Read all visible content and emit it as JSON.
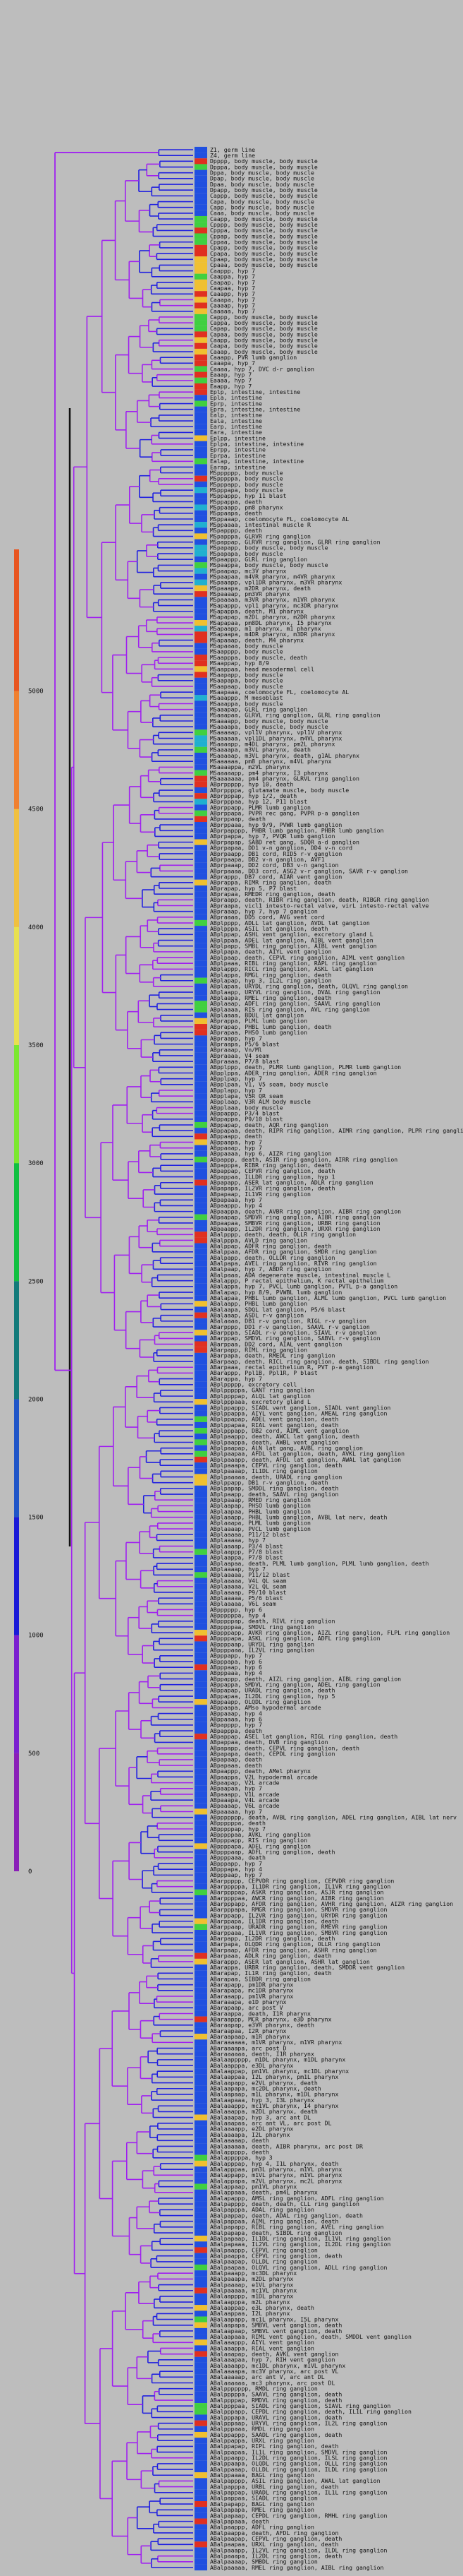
{
  "colorbar": {
    "ticks": [
      "0",
      "500",
      "1000",
      "1500",
      "2000",
      "2500",
      "3000",
      "3500",
      "4000",
      "4500",
      "5000"
    ],
    "max": 5600,
    "stops": [
      {
        "value": 0,
        "color": "#8a1fb8"
      },
      {
        "value": 500,
        "color": "#7b1fd0"
      },
      {
        "value": 1000,
        "color": "#1a1ad8"
      },
      {
        "value": 1500,
        "color": "#1f55c8"
      },
      {
        "value": 2000,
        "color": "#127a7a"
      },
      {
        "value": 2500,
        "color": "#10c040"
      },
      {
        "value": 3000,
        "color": "#7be830"
      },
      {
        "value": 3500,
        "color": "#e8e050"
      },
      {
        "value": 4000,
        "color": "#f0c040"
      },
      {
        "value": 4500,
        "color": "#f08030"
      },
      {
        "value": 5000,
        "color": "#e85520"
      }
    ]
  },
  "colors": {
    "branch_primary": "#a020f0",
    "branch_secondary": "#2020e0",
    "scale_bar": "#111111",
    "heat": [
      "#e03020",
      "#f0c030",
      "#40d040",
      "#20b0d0",
      "#2050e0"
    ]
  },
  "leaves": [
    "Z1, germ line",
    "Z4, germ line",
    "Dpppp, body muscle, body muscle",
    "Dpppa, body muscle, body muscle",
    "Dppa, body muscle, body muscle",
    "Dpap, body muscle, body muscle",
    "Dpaa, body muscle, body muscle",
    "Dpapp, body muscle, body muscle",
    "Cappp, body muscle, body muscle",
    "Capa, body muscle, body muscle",
    "Capp, body muscle, body muscle",
    "Caaa, body muscle, body muscle",
    "Caapp, body muscle, body muscle",
    "Cpppp, body muscle, body muscle",
    "Cpppa, body muscle, body muscle",
    "Cppap, body muscle, body muscle",
    "Cppaa, body muscle, body muscle",
    "Cpapp, body muscle, body muscle",
    "Cpapa, body muscle, body muscle",
    "Cpaap, body muscle, body muscle",
    "Cpaaa, body muscle, body muscle",
    "Caappp, hyp 7",
    "Caappa, hyp 7",
    "Caapap, hyp 7",
    "Caapaa, hyp 7",
    "Caaapp, hyp 7",
    "Caaapa, hyp 7",
    "Caaaap, hyp 7",
    "Caaaaa, hyp 7",
    "Cappp, body muscle, body muscle",
    "Cappa, body muscle, body muscle",
    "Capap, body muscle, body muscle",
    "Capaa, body muscle, body muscle",
    "Caapp, body muscle, body muscle",
    "Caapa, body muscle, body muscle",
    "Caaap, body muscle, body muscle",
    "Caaapp, PVR lumb ganglion",
    "Caaapa, hyp 7",
    "Caaaa, hyp 7, DVC d-r ganglion",
    "Eaaap, hyp 7",
    "Eaaaa, hyp 7",
    "Eaapp, hyp 7",
    "Eplp, intestine, intestine",
    "Epla, intestine",
    "Eprp, intestine",
    "Epra, intestine, intestine",
    "Ealp, intestine",
    "Eala, intestine",
    "Earp, intestine",
    "Eara, intestine",
    "Eplpp, intestine",
    "Eplpa, intestine, intestine",
    "Eprpp, intestine",
    "Eprpa, intestine",
    "Ealap, intestine, intestine",
    "Earap, intestine",
    "MSpppppp, body muscle",
    "MSpppppa, body muscle",
    "MSpppapp, body muscle",
    "MSpppapa, body muscle",
    "MSppappp, hyp 11 blast",
    "MSppappa, death",
    "MSppaapp, pm8 pharynx",
    "MSppaapa, death",
    "MSppaaap, coelomocyte FL, coelomocyte AL",
    "MSppaaaa, intestinal muscle R",
    "MSpapppp, death",
    "MSpapppa, GLRVR ring ganglion",
    "MSpappap, GLRVR ring ganglion, GLRR ring ganglion",
    "MSpapapp, body muscle, body muscle",
    "MSpapapa, body muscle",
    "MSpaappp, GLRL ring ganglion",
    "MSpaappa, body muscle, body muscle",
    "MSpaapap, mc3V pharynx",
    "MSpaapaa, m4VR pharynx, m4VR pharynx",
    "MSpaaapp, vpl1DR pharynx, m3VR pharynx",
    "MSpaaapa, m2DR pharynx, death",
    "MSpaaaap, pm3VR pharynx",
    "MSpaaaaa, m3VR pharynx, m1VR pharynx",
    "MSapappp, vpl1 pharynx, mc3DR pharynx",
    "MSapappa, death, M1 pharynx",
    "MSapapap, m2DL pharynx, m2DR pharynx",
    "MSapapaa, pm8DL pharynx, I5 pharynx",
    "MSapaapp, m1 pharynx, m1 pharynx",
    "MSapaapa, m4DR pharynx, m3DR pharynx",
    "MSapaaap, death, M4 pharynx",
    "MSapaaaa, body muscle",
    "MSaapppp, body muscle",
    "MSaapppa, body muscle, death",
    "MSaappap, hyp 8/9",
    "MSaappaa, head mesodermal cell",
    "MSaapapp, body muscle",
    "MSaapapa, body muscle",
    "MSaapaap, body muscle",
    "MSaapaaa, coelomocyte FL, coelomocyte AL",
    "MSaaappp, M mesoblast",
    "MSaaappa, body muscle",
    "MSaaapap, GLRL ring ganglion",
    "MSaaapaa, GLRVL ring ganglion, GLRL ring ganglion",
    "MSaaaapp, body muscle, body muscle",
    "MSaaaapa, body muscle, body muscle",
    "MSaaaaap, vpl1V pharynx, vpl1V pharynx",
    "MSaaaaaa, vpl1DL pharynx, m4VL pharynx",
    "MSaaaapp, m4DL pharynx, pm2L pharynx",
    "MSaaaapa, m3VL pharynx, death",
    "MSaaaaap, m3VL pharynx, death, g1AL pharynx",
    "MSaaaaaa, pm8 pharynx, m4VL pharynx",
    "MSaaaappa, m2VL pharynx",
    "MSaaaaapp, pm4 pharynx, I3 pharynx",
    "MSaaaaaaa, pm4 pharynx, GLRVL ring ganglion",
    "ABprppppp, hyp 10, death",
    "ABprppppa, glutamate muscle, body muscle",
    "ABprpppap, hyp 1/2, death",
    "ABprpppaa, hyp 12, P11 blast",
    "ABprppapp, PLMR lumb ganglion",
    "ABprppapa, PVPR rec gang, PVPR p-a ganglion",
    "ABprppaap, death",
    "ABprppaaa, hyp 9/9, PVWR lumb ganglion",
    "ABprpapppp, PHBR lumb ganglion, PHBR lumb ganglion",
    "ABprpappa, hyp 7, PVQR lumb ganglion",
    "ABprpapap, SABD ret gang, SDQR a-d ganglion",
    "ABprpapaa, DD1 v-n ganglion, DD4 v-n cord",
    "ABprpaapp, DB1 cord, RID5 r-v ganglion",
    "ABprpaapa, DB2 v-n ganglion, AVF1",
    "ABprpaaap, DD2 cord, DB3 v-n ganglion",
    "ABprpaaaa, DD3 cord, ASG2 v-r ganglion, SAVR r-v ganglion",
    "ABprappp, DB7 cord, AIAR vent ganglion",
    "ABprappa, RIMR ring ganglion, death",
    "ABprapap, hyp 5, P7 blast",
    "ABprapaa, RMEDR ring ganglion, death",
    "ABpraapp, death, RIBR ring ganglion, death, RIBGR ring ganglion",
    "ABpraapa, vicl1 intesto-rectal valve, virL intesto-rectal valve",
    "ABpraaap, hyp 7, hyp 7 ganglion",
    "ABpraaaa, DD5 cord, AVG vent cord",
    "ABplpppp, ADLL lat ganglion, AVDL lat ganglion",
    "ABplpppa, ASIL lat ganglion, death",
    "ABplppap, ASHL vent ganglion, excretory gland L",
    "ABplppaa, ADEL lat ganglion, AIBL vent ganglion",
    "ABplpapp, SMBL ring ganglion, AIBL vent ganglion",
    "ABplpapa, death, AIYL vent ganglion",
    "ABplpaap, death, CEPVL ring ganglion, AIML vent ganglion",
    "ABplpaaa, RIBL ring ganglion, RAPL ring ganglion",
    "ABplappp, RICL ring ganglion, ASKL lat ganglion",
    "ABplappa, RMGL ring ganglion, death",
    "ABplapap, hyp 3, IL2L ring ganglion",
    "ABplapaa, URYDL ring ganglion, death, OLQVL ring ganglion",
    "ABplaapp, URYVL ring ganglion, DVAL ring ganglion",
    "ABplaapa, RMEL ring ganglion, death",
    "ABplaaap, ADFL ring ganglion, SAAVL ring ganglion",
    "ABplaaaa, RIS ring ganglion, AVL ring ganglion",
    "ABplaaaa, BDUL lat ganglion",
    "ABprappa, PLML lumb ganglion",
    "ABprapap, PHBL lumb ganglion, death",
    "ABprapaa, PHSO lumb ganglion",
    "ABpraapp, hyp 7",
    "ABpraapa, P5/6 blast",
    "ABpraaap, Vn/Ml",
    "ABpraaaa, V4 seam",
    "ABpraaaa, P7/8 blast",
    "ABpplppp, death, PLMR lumb ganglion, PLMR lumb ganglion",
    "ABpplppa, ADER ring ganglion, ADER ring ganglion",
    "ABpplpap, hyp 7",
    "ABpplpaa, V1, V5 seam, body muscle",
    "ABpplapp, hyp 7",
    "ABpplapa, V5R QR seam",
    "ABpplaap, V3R ALM body muscle",
    "ABpplaaa, body muscle",
    "ABppappp, P3/4 blast",
    "ABppappa, P9/10 blast",
    "ABppapap, death, AQR ring ganglion",
    "ABppapaa, death, RIPR ring ganglion, AIMR ring ganglion, PLPR ring ganglion",
    "ABppaapp, death",
    "ABppaapa, hyp 7",
    "ABppaaap, hyp 7",
    "ABppaaaa, hyp 6, AIZR ring ganglion",
    "ABpappp, death, ASIR ring ganglion, AIRR ring ganglion",
    "ABpapppa, RIBR ring ganglion, death",
    "ABpappap, CEPVR ring ganglion, death",
    "ABpappaa, ILLDR ring ganglion, hyp 1",
    "ABpapapp, ASER lat ganglion, ADLR ring ganglion",
    "ABpapapa, IL2VR ring ganglion, death",
    "ABpapaap, IL1VR ring ganglion",
    "ABpapaaa, hyp 7",
    "ABpaappp, hyp 4",
    "ABpaappa, death, AVBR ring ganglion, AIBR ring ganglion",
    "ABpaapap, SMDVR ring ganglion, AIBR ring ganglion",
    "ABpaapaa, SMBVR ring ganglion, URBR ring ganglion",
    "ABpaaapp, IL2DR ring ganglion, URXR ring ganglion",
    "ABalpppp, death, death, OLLR ring ganglion",
    "ABalpppa, AVLD ring ganglion",
    "ABalppap, ADFR ring ganglion, death",
    "ABalppaa, AFDR ring ganglion, SMDR ring ganglion",
    "ABalpapp, death, OLLDR ring ganglion",
    "ABalpapa, AVEL ring ganglion, RIVR ring ganglion",
    "ABalpaap, hyp 7, ABDR ring ganglion",
    "ABalpaaa, ADA degenerate muscle, intestinal muscle L",
    "ABalappp, P rectal epithelium, K rectal epithelium",
    "ABalappa, hyp 7, PVCL lumb ganglion, PVTL p-a ganglion",
    "ABalapap, hyp 8/9, PVWBL lumb ganglion",
    "ABalapaa, PHBL lumb ganglion, ALML lumb ganglion, PVCL lumb ganglion",
    "ABalaapp, PHBL lumb ganglion",
    "ABalaapa, SDQL lat ganglion, P5/6 blast",
    "ABalaaap, ASDL r-v ganglion",
    "ABalaaaa, DB1 r-v ganglion, RIGL r-v ganglion",
    "ABarpppp, DD1 r-v ganglion, SAAVL r-v ganglion",
    "ABarpppa, SIADL r-v ganglion, SIAVL r-v ganglion",
    "ABarppap, SMDVL ring ganglion, SABVL r-v ganglion",
    "ABarppaa, DD2 cord, AIAL vent ganglion",
    "ABarpapp, RIML ring ganglion",
    "ABarpapa, death, RMEDL ring ganglion",
    "ABarpaap, death, RICL ring ganglion, death, SIBDL ring ganglion",
    "ABarpaaa, rectal epithelium R, PVT p-a ganglion",
    "ABarappp, Ppl1B, Ppl1R, P blast",
    "ABarappa, hyp 7",
    "ABplppppp, excretory cell",
    "ABplpppppa, GANT ring ganglion",
    "ABplppppap, ALQL lat ganglion",
    "ABplpppaaa, excretory gland L",
    "ABplppappp, SIADL vent ganglion, SIADL vent ganglion",
    "ABplppappa, AIYL vent ganglion, AMEAL ring ganglion",
    "ABplppapap, ADEL vent ganglion, death",
    "ABplppapaa, RIAL vent ganglion, death",
    "ABplpppapp, DB2 cord, AIML vent ganglion",
    "ABplpaappp, death, AWCL lat ganglion, death",
    "ABplpaappa, death, AWBL vent ganglion",
    "ABplpaapap, ALN lat gang, AVBL ring ganglion",
    "ABplpaapaa, AFDL lat ganglion, death, AVKL ring ganglion",
    "ABplpaaapp, death, AFDL lat ganglion, AWAL lat ganglion",
    "ABplpaaapa, CEPVL ring ganglion, death",
    "ABplpaaaap, IL1DL ring ganglion",
    "ABplpaaaaa, death, URADL ring ganglion",
    "ABplppapp, DB1 r-v ganglion, death",
    "ABplpapap, SMDDL ring ganglion, death",
    "ABplpaapp, death, SAAVL ring ganglion",
    "ABplpaaap, RMED ring ganglion",
    "ABplaapap, PHSO lumb ganglion",
    "ABplaapaa, PHBL lumb ganglion",
    "ABplaaapp, PHBL lumb ganglion, AVBL lat nerv, death",
    "ABplaaapa, PLML lumb ganglion",
    "ABplaaaap, PVCL lumb ganglion",
    "ABplaaaaa, P11/12 blast",
    "ABplaaaaa, hyp 7",
    "ABplaaaap, P3/4 blast",
    "ABplaappp, P7/8 blast",
    "ABplaappa, P7/8 blast",
    "ABplaapaa, death, PLML lumb ganglion, PLML lumb ganglion, death",
    "ABplaaaap, hyp 7",
    "ABplaaaaa, P11/12 blast",
    "ABplaaaaa, V4L QL seam",
    "ABplaaaaa, V2L QL seam",
    "ABplaaaap, P9/10 blast",
    "ABplaaaaa, P5/6 blast",
    "ABplaaaaa, V6L seam",
    "ABpppppp, hyp 6",
    "ABppppppa, hyp 4",
    "ABpppppap, death, RIVL ring ganglion",
    "ABpppppaa, SMDVL ring ganglion",
    "ABppppapp, AVKR ring ganglion, AIZL ring ganglion, FLPL ring ganglion",
    "ABppppapa, ASKL ring ganglion, ADFL ring ganglion",
    "ABppppaap, URYDL ring ganglion",
    "ABppppaaa, IL2VL ring ganglion",
    "ABpppapp, hyp 7",
    "ABpppapa, hyp 6",
    "ABpppaap, hyp 6",
    "ABpppaaa, hyp 4",
    "ABppappp, death, AIZL ring ganglion, AIBL ring ganglion",
    "ABppappa, SMDVL ring ganglion, ADEL ring ganglion",
    "ABppapap, URADL ring ganglion, death",
    "ABppapaa, IL2DL ring ganglion, hyp 5",
    "ABppaapp, OLQDL ring ganglion",
    "ABppaapa, AMso hypodermal arcade",
    "ABppaaap, hyp 4",
    "ABppaaaa, hyp 6",
    "ABpapppp, hyp 7",
    "ABpapppa, death",
    "ABpappap, ASEL lat ganglion, RIGL ring ganglion, death",
    "ABpappaa, death, DVB ring ganglion",
    "ABpapapp, death, CEPVL ring ganglion, death",
    "ABpapapa, death, CEPDL ring ganglion",
    "ABpapaap, death",
    "ABpapaaa, death",
    "ABpaappp, death, AMel pharynx",
    "ABpaappa, V2L hypodermal arcade",
    "ABpaapap, V2L arcade",
    "ABpaapaa, hyp 7",
    "ABpaaapp, V1L arcade",
    "ABpaaapa, V4L arcade",
    "ABpaaaap, V6L arcade",
    "ABpaaaaa, hyp 7",
    "ABppppppp, death, AVBL ring ganglion, ADEL ring ganglion, AIBL lat nerv",
    "ABppppppa, death",
    "ABpppppap, hyp 7",
    "ABpppppaa, AVKL ring ganglion",
    "ABppppapp, RIS ring ganglion",
    "ABppppapa, ADEL ring ganglion",
    "ABppppaap, ADFL ring ganglion, death",
    "ABppppaaa, death",
    "ABpppapp, hyp 7",
    "ABpppapa, hyp 4",
    "ABpppaap, hyp 7",
    "ABarppppp, CEPVDR ring ganglion, CEPVDR ring ganglion",
    "ABarpppppa, IL1DR ring ganglion, IL1VR ring ganglion",
    "ABarppppap, ASKR ring ganglion, ASJR ring ganglion",
    "ABarppppaa, AWCR ring ganglion, AIBR ring ganglion",
    "ABarpppapp, AFDR ring ganglion, AVHR ring ganglion, AIZR ring ganglion",
    "ABarpppapa, RMGR ring ganglion, SMDVR ring ganglion",
    "ABarppapp, IL2VR ring ganglion, URYDR ring ganglion",
    "ABarppapa, IL1DR ring ganglion, death",
    "ABarppaap, URADR ring ganglion, RMEVR ring ganglion",
    "ABarppaaa, IL1VR ring ganglion, SMBVR ring ganglion",
    "ABarpapp, IL2DR ring ganglion, death",
    "ABarpapa, OLQDR ring ganglion, OLLR ring ganglion",
    "ABarpaap, AFDR ring ganglion, ASHR ring ganglion",
    "ABarpaaa, ADLR ring ganglion, death",
    "ABarappp, ASER lat ganglion, ASHR lat ganglion",
    "ABarappa, URBR ring ganglion, death, SMDDR vent ganglion",
    "ABarapap, IL1R ring ganglion, death",
    "ABarapaa, SIBDR ring ganglion",
    "ABarapapp, pm1DR pharynx",
    "ABarapapa, mc1DR pharynx",
    "ABaraaapp, pm1VR pharynx",
    "ABaraaapa, e1D pharynx",
    "ABarapaap, arc post V",
    "ABaraappa, death, I1R pharynx",
    "ABaraappp, MCR pharynx, e3D pharynx",
    "ABaraapap, e3VR pharynx, death",
    "ABaraapaa, I2R pharynx",
    "ABaraapaap, m1R pharynx",
    "ABaraaaaaa, m1VR pharynx, m1VR pharynx",
    "ABaraaaapa, arc post D",
    "ABaraaaaaa, death, I1R pharynx",
    "ABalaappppp, m1DL pharynx, m1DL pharynx",
    "ABalaapppa, e3DL pharynx",
    "ABalaappap, pm1VL pharynx, mc1DL pharynx",
    "ABalaappaa, I2L pharynx, pm1L pharynx",
    "ABalaapapp, e2VL pharynx, death",
    "ABalaapapa, mc2DL pharynx, death",
    "ABalaapaap, m1L pharynx, m1DL pharynx",
    "ABalaapaaa, hyp 3, I3L pharynx",
    "ABalaaappp, mc1VL pharynx, I4 pharynx",
    "ABalaaappa, m2DL pharynx, death",
    "ABalaaapap, hyp 3, arc ant DL",
    "ABalaaapaa, arc ant VL, arc post DL",
    "ABalaaaapp, e2DL pharynx",
    "ABalaaaapa, I2L pharynx",
    "ABalaaaaap, death",
    "ABalaaaaaa, death, AIBR pharynx, arc post DR",
    "ABalappppp, death",
    "ABalapppppa, hyp 3",
    "ABalapppap, hyp 4, I1L pharynx, death",
    "ABalapppaa, pm3L pharynx, m1VL pharynx",
    "ABalappapp, m1VL pharynx, m1VL pharynx",
    "ABalappapa, m2VL pharynx, mc2L pharynx",
    "ABalappaap, pm1VL pharynx",
    "ABalappaaa, death, pm4L pharynx",
    "ABalapappp, AMSL ring ganglion, ADFL ring ganglion",
    "ABalpapppp, death, death, CLL ring ganglion",
    "ABalpapppa, ADAL ring ganglion",
    "ABalpappap, death, ADAL ring ganglion, death",
    "ABalpappaa, AIML ring ganglion, death",
    "ABalpapapp, RIBL ring ganglion, AVEL ring ganglion",
    "ABalpapapa, death, SIBDL ring ganglion",
    "ABalpapaap, IL1DL ring ganglion, IL1VL ring ganglion",
    "ABalpapaaa, IL2VL ring ganglion, IL2DL ring ganglion",
    "ABalpaappp, CEPVL ring ganglion",
    "ABalpaappa, CEPVL ring ganglion, death",
    "ABalpaapap, OLLDL ring ganglion",
    "ABalpaapaa, OLQVL ring ganglion, ADLL ring ganglion",
    "ABalpaaapp, mc3DL pharynx",
    "ABalpaaapa, m2DL pharynx",
    "ABalpaaaap, e1VL pharynx",
    "ABalpaaaaa, mc1VL pharynx",
    "ABalaapppp, m1DL pharynx",
    "ABalaapppa, m2L pharynx",
    "ABalaappap, e3L pharynx, death",
    "ABalaappaa, I2L pharynx",
    "ABalaapapp, mc1L pharynx, I5L pharynx",
    "ABalaapapa, SMBVL vent ganglion, death",
    "ABalaapaap, SMBVL vent ganglion, death",
    "ABalaapaaa, RIML vent ganglion, death, SMDDL vent ganglion",
    "ABalaaappp, AIYL vent ganglion",
    "ABalaaappa, RIAL vent ganglion",
    "ABalaaapap, death, AVKL vent ganglion",
    "ABalaaapaa, hyp 7, RIH vent ganglion",
    "ABalaaaapp, mc1DL pharynx, m1VL pharynx",
    "ABalaaaapa, mc3V pharynx, arc post VL",
    "ABalaaaaap, arc ant V, arc ant DL",
    "ABalaaaaaa, mc3 pharynx, arc post DL",
    "ABalppppppp, RMDL ring ganglion",
    "ABalpppppa, SAAVL ring ganglion, death",
    "ABalppppap, RMDVL ring ganglion, death",
    "ABalppppaa, SIADL ring ganglion, SIAVL ring ganglion",
    "ABalpppapp, CEPDL ring ganglion, death, IL1L ring ganglion",
    "ABalpppapa, URAVL ring ganglion, death",
    "ABalpppaap, URYVL ring ganglion, IL2L ring ganglion",
    "ABalpppaaa, RMDL ring ganglion",
    "ABalppappp, SAADL ring ganglion, death",
    "ABalppappa, URXL ring ganglion",
    "ABalppapap, RIPL ring ganglion, death",
    "ABalppapaa, IL1L ring ganglion, SMDVL ring ganglion",
    "ABalppaapp, IL2DL ring ganglion, ILSL ring ganglion",
    "ABalppaapa, OLQDL ring ganglion, OLLL ring ganglion",
    "ABalppaaap, OLLDL ring ganglion, ILDL ring ganglion",
    "ABalppaaaa, BAGL ring ganglion",
    "ABalpapppp, ASIL ring ganglion, AWAL lat ganglion",
    "ABalpapppa, URBL ring ganglion, death",
    "ABalpappap, URADL ring ganglion, IL1L ring ganglion",
    "ABalpappaa, SIADL ring ganglion",
    "ABalpapapp, BAGL ring ganglion",
    "ABalpapapa, RMEL ring ganglion",
    "ABalpapaap, CEPDL ring ganglion, RMHL ring ganglion",
    "ABalpapaaa, death",
    "ABalpaappp, ADFL ring ganglion",
    "ABalpaappa, death, AFDL ring ganglion",
    "ABalpaapap, CEPVL ring ganglion, death",
    "ABalpaapaa, URXL ring ganglion, death",
    "ABalpaaapp, IL2VL ring ganglion, ILDL ring ganglion",
    "ABalpaaapa, IL2DL ring ganglion, death",
    "ABalpaaaap, SMBDL ring ganglion",
    "ABalpaaaaa, RMEL ring ganglion, AIBL ring ganglion"
  ]
}
